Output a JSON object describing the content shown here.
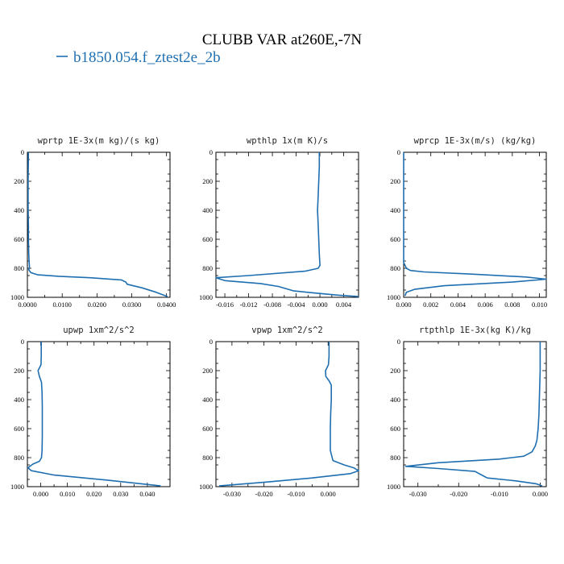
{
  "figure": {
    "title": "CLUBB VAR at260E,-7N",
    "legend": [
      {
        "label": "b1850.054.f_ztest2e_2b",
        "color": "#1f6fb0"
      }
    ],
    "line_color": "#1f6fb0"
  },
  "chart_data": [
    {
      "type": "line",
      "title": "wprtp  1E-3x(m kg)/(s kg)",
      "xlim": [
        0.0,
        0.041
      ],
      "ylim": [
        1000,
        0
      ],
      "xticks": [
        {
          "v": 0.0,
          "label": "0.0000"
        },
        {
          "v": 0.01,
          "label": "0.0100"
        },
        {
          "v": 0.02,
          "label": "0.0200"
        },
        {
          "v": 0.03,
          "label": "0.0300"
        },
        {
          "v": 0.04,
          "label": "0.0400"
        }
      ],
      "yticks": [
        0,
        200,
        400,
        600,
        800,
        1000
      ],
      "series": [
        {
          "x": [
            0.0003,
            0.0002,
            0.0002,
            0.0003,
            0.0003,
            0.0004,
            0.0005,
            0.0006,
            0.0004,
            0.001,
            0.003,
            0.009,
            0.018,
            0.027,
            0.0283,
            0.0287,
            0.033,
            0.037,
            0.0403
          ],
          "y": [
            0,
            200,
            400,
            500,
            600,
            700,
            760,
            790,
            810,
            830,
            845,
            855,
            865,
            880,
            895,
            910,
            935,
            965,
            995
          ]
        }
      ]
    },
    {
      "type": "line",
      "title": "wpthlp  1x(m K)/s",
      "xlim": [
        -0.0175,
        0.0065
      ],
      "ylim": [
        1000,
        0
      ],
      "xticks": [
        {
          "v": -0.016,
          "label": "-0.016"
        },
        {
          "v": -0.012,
          "label": "-0.012"
        },
        {
          "v": -0.008,
          "label": "-0.008"
        },
        {
          "v": -0.004,
          "label": "-0.004"
        },
        {
          "v": 0.0,
          "label": "0.000"
        },
        {
          "v": 0.004,
          "label": "0.004"
        }
      ],
      "yticks": [
        0,
        200,
        400,
        600,
        800,
        1000
      ],
      "series": [
        {
          "x": [
            -0.0001,
            -0.0001,
            -0.0002,
            -0.0003,
            -0.0004,
            -0.0003,
            -0.0002,
            -0.0001,
            0.0,
            -0.0003,
            -0.0025,
            -0.012,
            -0.0175,
            -0.016,
            -0.01,
            -0.007,
            -0.0045,
            -0.001,
            0.003,
            0.0065
          ],
          "y": [
            0,
            100,
            200,
            300,
            400,
            500,
            600,
            700,
            780,
            800,
            820,
            850,
            865,
            885,
            905,
            925,
            955,
            970,
            985,
            995
          ]
        }
      ]
    },
    {
      "type": "line",
      "title": "wprcp  1E-3x(m/s) (kg/kg)",
      "xlim": [
        0.0,
        0.0105
      ],
      "ylim": [
        1000,
        0
      ],
      "xticks": [
        {
          "v": 0.0,
          "label": "0.000"
        },
        {
          "v": 0.002,
          "label": "0.002"
        },
        {
          "v": 0.004,
          "label": "0.004"
        },
        {
          "v": 0.006,
          "label": "0.006"
        },
        {
          "v": 0.008,
          "label": "0.008"
        },
        {
          "v": 0.01,
          "label": "0.010"
        }
      ],
      "yticks": [
        0,
        200,
        400,
        600,
        800,
        1000
      ],
      "series": [
        {
          "x": [
            0.0,
            0.0,
            0.0,
            0.0,
            0.0,
            0.0001,
            0.0002,
            0.0005,
            0.0015,
            0.005,
            0.009,
            0.0105,
            0.008,
            0.003,
            0.0008,
            0.0002,
            0.0001
          ],
          "y": [
            0,
            200,
            400,
            600,
            760,
            780,
            800,
            815,
            825,
            840,
            860,
            875,
            895,
            920,
            945,
            965,
            990
          ]
        }
      ]
    },
    {
      "type": "line",
      "title": "upwp  1xm^2/s^2",
      "xlim": [
        -0.005,
        0.0485
      ],
      "ylim": [
        1000,
        0
      ],
      "xticks": [
        {
          "v": 0.0,
          "label": "0.000"
        },
        {
          "v": 0.01,
          "label": "0.010"
        },
        {
          "v": 0.02,
          "label": "0.020"
        },
        {
          "v": 0.03,
          "label": "0.030"
        },
        {
          "v": 0.04,
          "label": "0.040"
        }
      ],
      "yticks": [
        0,
        200,
        400,
        600,
        800,
        1000
      ],
      "series": [
        {
          "x": [
            0.0002,
            0.0002,
            0.0001,
            -0.001,
            -0.0005,
            0.0003,
            0.0005,
            0.0006,
            0.0006,
            0.0006,
            0.0005,
            0.0003,
            -0.0005,
            -0.003,
            -0.0048,
            -0.0035,
            0.005,
            0.025,
            0.045
          ],
          "y": [
            0,
            100,
            160,
            200,
            240,
            280,
            350,
            450,
            550,
            650,
            750,
            800,
            825,
            845,
            870,
            890,
            920,
            955,
            995
          ]
        }
      ]
    },
    {
      "type": "line",
      "title": "vpwp  1xm^2/s^2",
      "xlim": [
        -0.035,
        0.0095
      ],
      "ylim": [
        1000,
        0
      ],
      "xticks": [
        {
          "v": -0.03,
          "label": "-0.030"
        },
        {
          "v": -0.02,
          "label": "-0.020"
        },
        {
          "v": -0.01,
          "label": "-0.010"
        },
        {
          "v": 0.0,
          "label": "0.000"
        }
      ],
      "yticks": [
        0,
        200,
        400,
        600,
        800,
        1000
      ],
      "series": [
        {
          "x": [
            0.0003,
            0.0003,
            0.0001,
            -0.0008,
            -0.0007,
            0.0003,
            0.001,
            0.001,
            0.0008,
            0.0007,
            0.0007,
            0.0015,
            0.005,
            0.008,
            0.0095,
            0.007,
            -0.005,
            -0.02,
            -0.034
          ],
          "y": [
            0,
            100,
            160,
            200,
            240,
            270,
            300,
            400,
            500,
            600,
            750,
            820,
            850,
            870,
            890,
            910,
            940,
            970,
            995
          ]
        }
      ]
    },
    {
      "type": "line",
      "title": "rtpthlp  1E-3x(kg K)/kg",
      "xlim": [
        -0.0335,
        0.0015
      ],
      "ylim": [
        1000,
        0
      ],
      "xticks": [
        {
          "v": -0.03,
          "label": "-0.030"
        },
        {
          "v": -0.02,
          "label": "-0.020"
        },
        {
          "v": -0.01,
          "label": "-0.010"
        },
        {
          "v": 0.0,
          "label": "0.000"
        }
      ],
      "yticks": [
        0,
        200,
        400,
        600,
        800,
        1000
      ],
      "series": [
        {
          "x": [
            0.0,
            0.0,
            -0.0002,
            -0.0003,
            -0.0005,
            -0.0008,
            -0.0012,
            -0.002,
            -0.004,
            -0.01,
            -0.025,
            -0.033,
            -0.025,
            -0.016,
            -0.014,
            -0.013,
            -0.006,
            -0.001,
            0.0005
          ],
          "y": [
            0,
            200,
            400,
            500,
            600,
            680,
            720,
            760,
            790,
            810,
            835,
            860,
            875,
            895,
            925,
            940,
            960,
            980,
            995
          ]
        }
      ]
    }
  ]
}
